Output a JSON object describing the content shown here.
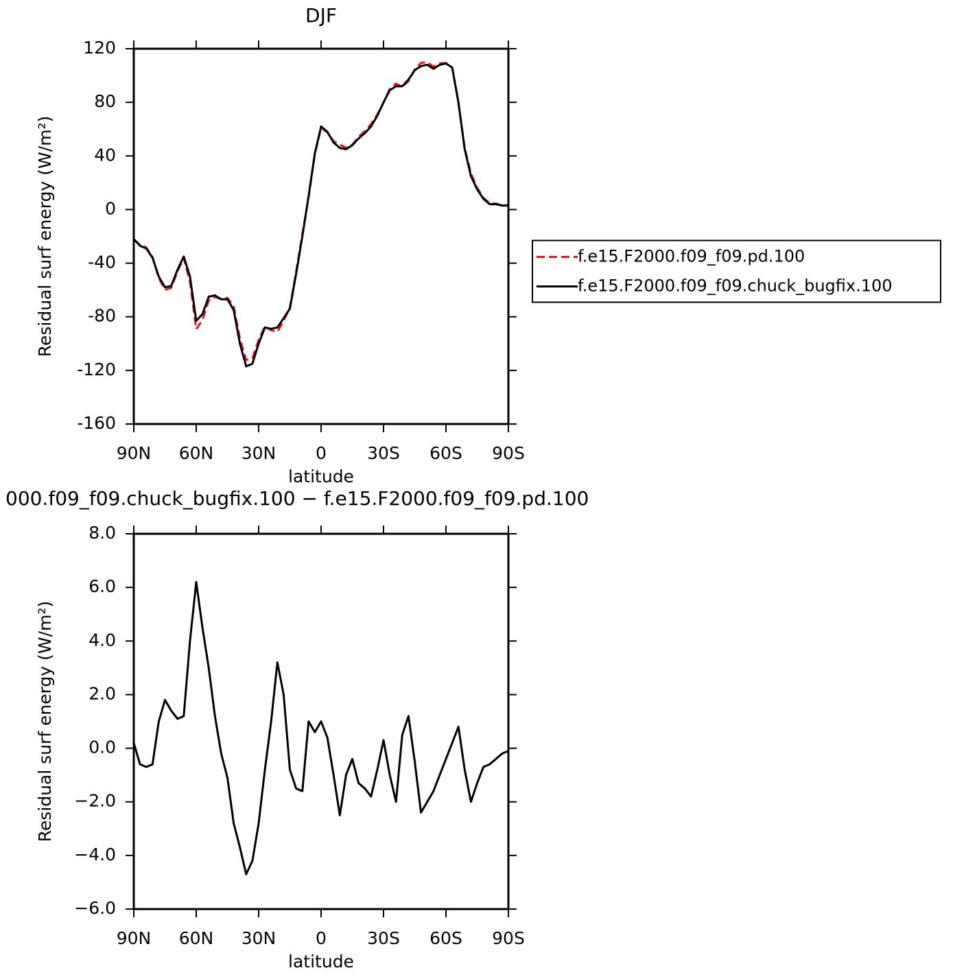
{
  "chart_data": [
    {
      "type": "line",
      "title": "DJF",
      "xlabel": "latitude",
      "ylabel": "Residual surf energy (W/m²)",
      "x": [
        90,
        87,
        84,
        81,
        78,
        75,
        72,
        69,
        66,
        63,
        60,
        57,
        54,
        51,
        48,
        45,
        42,
        39,
        36,
        33,
        30,
        27,
        24,
        21,
        18,
        15,
        12,
        9,
        6,
        3,
        0,
        -3,
        -6,
        -9,
        -12,
        -15,
        -18,
        -21,
        -24,
        -27,
        -30,
        -33,
        -36,
        -39,
        -42,
        -45,
        -48,
        -51,
        -54,
        -57,
        -60,
        -63,
        -66,
        -69,
        -72,
        -75,
        -78,
        -81,
        -84,
        -87,
        -90
      ],
      "xlim": [
        90,
        -90
      ],
      "xticks": [
        {
          "value": 90,
          "label": "90N"
        },
        {
          "value": 60,
          "label": "60N"
        },
        {
          "value": 30,
          "label": "30N"
        },
        0,
        {
          "value": -30,
          "label": "30S"
        },
        {
          "value": -60,
          "label": "60S"
        },
        {
          "value": -90,
          "label": "90S"
        }
      ],
      "ylim": [
        -160,
        120
      ],
      "yticks": [
        120,
        80,
        40,
        0,
        -40,
        -80,
        -120,
        -160
      ],
      "legend": "right",
      "series": [
        {
          "name": "f.e15.F2000.f09_f09.pd.100",
          "color": "#e8141b",
          "dashed": true,
          "values": [
            -22.2,
            -26.4,
            -28.3,
            -35.4,
            -51,
            -59.8,
            -58.4,
            -46.1,
            -36.2,
            -54,
            -89.2,
            -82.5,
            -68,
            -65.2,
            -66.8,
            -65.9,
            -72.2,
            -96.3,
            -112.3,
            -110.8,
            -97.2,
            -87.2,
            -90,
            -91.2,
            -83,
            -73.2,
            -46.5,
            -18.4,
            9,
            41.4,
            61,
            57.6,
            51,
            48.5,
            46,
            48.4,
            54.3,
            58.5,
            63.8,
            70.8,
            79.7,
            90,
            94,
            91.5,
            95.8,
            104.5,
            109.4,
            110,
            106.6,
            109,
            109.4,
            105.8,
            79.2,
            45.8,
            27,
            16.3,
            8.7,
            4.6,
            4.4,
            3.2,
            3.1
          ]
        },
        {
          "name": "f.e15.F2000.f09_f09.chuck_bugfix.100",
          "color": "#000000",
          "dashed": false,
          "values": [
            -22,
            -27,
            -29,
            -36,
            -50,
            -58,
            -57,
            -45,
            -35,
            -50,
            -83,
            -78,
            -65,
            -64,
            -67,
            -67,
            -75,
            -100,
            -117,
            -115,
            -100,
            -88,
            -89,
            -88,
            -81,
            -74,
            -48,
            -20,
            10,
            42,
            62,
            58,
            50,
            46,
            45,
            48,
            53,
            57,
            62,
            70,
            80,
            89,
            92,
            92,
            97,
            104,
            107,
            108,
            105,
            108,
            109,
            106,
            80,
            45,
            25,
            15,
            8,
            4,
            4,
            3,
            3
          ]
        }
      ]
    },
    {
      "type": "line",
      "title": "000.f09_f09.chuck_bugfix.100 − f.e15.F2000.f09_f09.pd.100",
      "xlabel": "latitude",
      "ylabel": "Residual surf energy (W/m²)",
      "x": [
        90,
        87,
        84,
        81,
        78,
        75,
        72,
        69,
        66,
        63,
        60,
        57,
        54,
        51,
        48,
        45,
        42,
        39,
        36,
        33,
        30,
        27,
        24,
        21,
        18,
        15,
        12,
        9,
        6,
        3,
        0,
        -3,
        -6,
        -9,
        -12,
        -15,
        -18,
        -21,
        -24,
        -27,
        -30,
        -33,
        -36,
        -39,
        -42,
        -45,
        -48,
        -51,
        -54,
        -57,
        -60,
        -63,
        -66,
        -69,
        -72,
        -75,
        -78,
        -81,
        -84,
        -87,
        -90
      ],
      "xlim": [
        90,
        -90
      ],
      "xticks": [
        {
          "value": 90,
          "label": "90N"
        },
        {
          "value": 60,
          "label": "60N"
        },
        {
          "value": 30,
          "label": "30N"
        },
        0,
        {
          "value": -30,
          "label": "30S"
        },
        {
          "value": -60,
          "label": "60S"
        },
        {
          "value": -90,
          "label": "90S"
        }
      ],
      "ylim": [
        -6,
        8
      ],
      "yticks": [
        {
          "value": 8,
          "label": "8.0"
        },
        {
          "value": 6,
          "label": "6.0"
        },
        {
          "value": 4,
          "label": "4.0"
        },
        {
          "value": 2,
          "label": "2.0"
        },
        {
          "value": 0,
          "label": "0.0"
        },
        {
          "value": -2,
          "label": "−2.0"
        },
        {
          "value": -4,
          "label": "−4.0"
        },
        {
          "value": -6,
          "label": "−6.0"
        }
      ],
      "series": [
        {
          "color": "#000000",
          "dashed": false,
          "values": [
            0.2,
            -0.6,
            -0.7,
            -0.6,
            1.0,
            1.8,
            1.4,
            1.1,
            1.2,
            4.0,
            6.2,
            4.5,
            3.0,
            1.2,
            -0.2,
            -1.1,
            -2.8,
            -3.7,
            -4.7,
            -4.2,
            -2.8,
            -0.8,
            1.0,
            3.2,
            2.0,
            -0.8,
            -1.5,
            -1.6,
            1.0,
            0.6,
            1.0,
            0.4,
            -1.0,
            -2.5,
            -1.0,
            -0.4,
            -1.3,
            -1.5,
            -1.8,
            -0.8,
            0.3,
            -1.0,
            -2.0,
            0.5,
            1.2,
            -0.5,
            -2.4,
            -2.0,
            -1.6,
            -1.0,
            -0.4,
            0.2,
            0.8,
            -0.8,
            -2.0,
            -1.3,
            -0.7,
            -0.6,
            -0.4,
            -0.2,
            -0.1
          ]
        }
      ]
    }
  ]
}
